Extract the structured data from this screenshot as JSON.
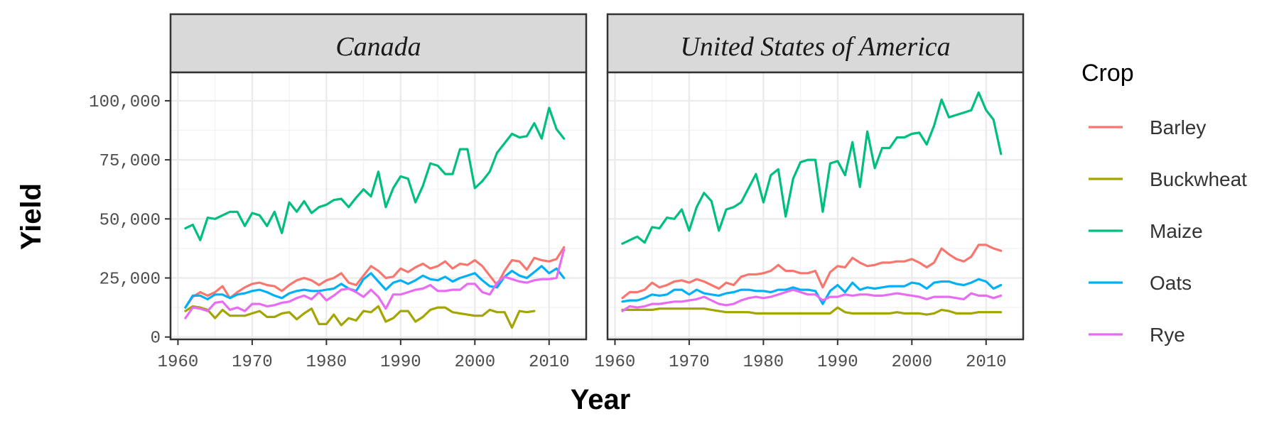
{
  "chart_data": {
    "type": "line",
    "xlabel": "Year",
    "ylabel": "Yield",
    "xlim": [
      1959,
      2015
    ],
    "ylim": [
      -1000,
      112000
    ],
    "xticks": [
      1960,
      1970,
      1980,
      1990,
      2000,
      2010
    ],
    "xtick_labels": [
      "1960",
      "1970",
      "1980",
      "1990",
      "2000",
      "2010"
    ],
    "yticks": [
      0,
      25000,
      50000,
      75000,
      100000
    ],
    "ytick_labels": [
      "0",
      "25,000",
      "50,000",
      "75,000",
      "100,000"
    ],
    "grid": true,
    "legend": {
      "title": "Crop",
      "position": "right",
      "items": [
        {
          "name": "Barley",
          "color": "#F8766D"
        },
        {
          "name": "Buckwheat",
          "color": "#A3A500"
        },
        {
          "name": "Maize",
          "color": "#00BF7D"
        },
        {
          "name": "Oats",
          "color": "#00B0F6"
        },
        {
          "name": "Rye",
          "color": "#E76BF3"
        }
      ]
    },
    "x": [
      1961,
      1962,
      1963,
      1964,
      1965,
      1966,
      1967,
      1968,
      1969,
      1970,
      1971,
      1972,
      1973,
      1974,
      1975,
      1976,
      1977,
      1978,
      1979,
      1980,
      1981,
      1982,
      1983,
      1984,
      1985,
      1986,
      1987,
      1988,
      1989,
      1990,
      1991,
      1992,
      1993,
      1994,
      1995,
      1996,
      1997,
      1998,
      1999,
      2000,
      2001,
      2002,
      2003,
      2004,
      2005,
      2006,
      2007,
      2008,
      2009,
      2010,
      2011,
      2012
    ],
    "panels": [
      {
        "title": "Canada",
        "series": [
          {
            "name": "Barley",
            "color": "#F8766D",
            "values": [
              12500,
              17000,
              19000,
              17500,
              19000,
              21500,
              16500,
              19000,
              21000,
              22500,
              23000,
              22000,
              21500,
              19500,
              22000,
              24000,
              25000,
              24000,
              22000,
              24000,
              25000,
              27000,
              23000,
              22000,
              26000,
              30000,
              28000,
              25000,
              25500,
              29000,
              27500,
              29500,
              31000,
              29000,
              30000,
              32000,
              29000,
              31000,
              30500,
              32500,
              30000,
              26000,
              22000,
              28000,
              32500,
              32000,
              28500,
              33500,
              32500,
              32000,
              33000,
              38000
            ]
          },
          {
            "name": "Buckwheat",
            "color": "#A3A500",
            "values": [
              11000,
              13000,
              12500,
              11500,
              8000,
              11500,
              9000,
              9000,
              9000,
              10000,
              11000,
              8500,
              8500,
              10000,
              10500,
              7500,
              10000,
              12000,
              5500,
              5500,
              9500,
              5000,
              8000,
              7000,
              11000,
              10500,
              13000,
              6500,
              8000,
              11000,
              11000,
              6500,
              8500,
              11500,
              12500,
              12500,
              10500,
              10000,
              9500,
              9000,
              9000,
              11500,
              10500,
              10500,
              4000,
              11000,
              10500,
              11000,
              null,
              null,
              null,
              null
            ]
          },
          {
            "name": "Maize",
            "color": "#00BF7D",
            "values": [
              46000,
              47500,
              41000,
              50500,
              50000,
              51500,
              53000,
              53000,
              47000,
              52500,
              51500,
              47000,
              53000,
              44000,
              57000,
              53000,
              57500,
              52500,
              55000,
              56000,
              58000,
              58500,
              55000,
              59000,
              62500,
              59500,
              70000,
              55000,
              63000,
              68000,
              67000,
              57000,
              64000,
              73500,
              72500,
              69000,
              69000,
              79500,
              79500,
              63000,
              66000,
              70000,
              78000,
              82000,
              86000,
              84500,
              85000,
              90500,
              84000,
              97000,
              88000,
              84000
            ]
          },
          {
            "name": "Oats",
            "color": "#00B0F6",
            "values": [
              12500,
              17500,
              17500,
              16000,
              18000,
              18000,
              16500,
              18000,
              18500,
              19500,
              20000,
              19000,
              17500,
              16500,
              18500,
              19500,
              20000,
              19500,
              19500,
              20000,
              20500,
              22500,
              20500,
              19500,
              24500,
              27000,
              23500,
              20000,
              23000,
              24000,
              22500,
              24000,
              26000,
              24500,
              24000,
              25500,
              23500,
              25000,
              26000,
              27000,
              24000,
              21500,
              21000,
              25500,
              28000,
              26000,
              25000,
              27500,
              30000,
              27000,
              29000,
              25000
            ]
          },
          {
            "name": "Rye",
            "color": "#E76BF3",
            "values": [
              8000,
              12500,
              12000,
              11000,
              14500,
              15000,
              11500,
              12500,
              11000,
              14000,
              14000,
              13000,
              13500,
              14500,
              15000,
              16500,
              17500,
              16000,
              19000,
              15500,
              17500,
              20000,
              20500,
              19000,
              17000,
              20000,
              17000,
              12000,
              18000,
              18000,
              19000,
              20000,
              20500,
              22000,
              19500,
              19500,
              20000,
              20000,
              22500,
              22500,
              19000,
              18000,
              23000,
              25500,
              24500,
              23500,
              23000,
              24000,
              24500,
              24500,
              25000,
              37000
            ]
          }
        ]
      },
      {
        "title": "United States of America",
        "series": [
          {
            "name": "Barley",
            "color": "#F8766D",
            "values": [
              16500,
              19000,
              19000,
              20000,
              23000,
              21000,
              22000,
              23500,
              24000,
              23000,
              24500,
              23500,
              22000,
              20500,
              23000,
              22000,
              25500,
              26500,
              26500,
              27000,
              28000,
              30500,
              28000,
              28000,
              27000,
              27000,
              28000,
              21000,
              27500,
              30000,
              29500,
              33500,
              31500,
              30000,
              30500,
              31500,
              31500,
              32000,
              32000,
              33000,
              31500,
              29500,
              31500,
              37500,
              35000,
              33000,
              32000,
              34000,
              39000,
              39000,
              37500,
              36500
            ]
          },
          {
            "name": "Buckwheat",
            "color": "#A3A500",
            "values": [
              11500,
              11500,
              11500,
              11500,
              11500,
              12000,
              12000,
              12000,
              12000,
              12000,
              12000,
              12000,
              11500,
              11000,
              10500,
              10500,
              10500,
              10500,
              10000,
              10000,
              10000,
              10000,
              10000,
              10000,
              10000,
              10000,
              10000,
              10000,
              10000,
              12500,
              10500,
              10000,
              10000,
              10000,
              10000,
              10000,
              10000,
              10500,
              10000,
              10000,
              10000,
              9500,
              10000,
              11500,
              11000,
              10000,
              10000,
              10000,
              10500,
              10500,
              10500,
              10500
            ]
          },
          {
            "name": "Maize",
            "color": "#00BF7D",
            "values": [
              39500,
              41000,
              42500,
              40000,
              46500,
              46000,
              50500,
              50000,
              54000,
              45000,
              55000,
              61000,
              57500,
              45000,
              54000,
              55000,
              57000,
              63000,
              69000,
              57000,
              68500,
              71000,
              51000,
              67000,
              74000,
              75000,
              75000,
              53000,
              73500,
              74500,
              68500,
              82500,
              63500,
              87000,
              71500,
              80000,
              80000,
              84500,
              84500,
              86000,
              86500,
              81500,
              89500,
              100500,
              93000,
              94000,
              95000,
              96000,
              103500,
              96000,
              92000,
              77500
            ]
          },
          {
            "name": "Oats",
            "color": "#00B0F6",
            "values": [
              15000,
              15500,
              15500,
              16500,
              18000,
              17500,
              18000,
              20000,
              20000,
              18000,
              20000,
              18500,
              18000,
              17500,
              18500,
              19000,
              20000,
              20000,
              19500,
              19500,
              19000,
              20000,
              20000,
              21000,
              20000,
              20000,
              19500,
              14000,
              19500,
              22000,
              19000,
              23000,
              20000,
              21000,
              20500,
              21000,
              21500,
              21500,
              21500,
              23000,
              22500,
              20500,
              23000,
              23500,
              23500,
              22500,
              22000,
              23000,
              24500,
              23500,
              20500,
              22000
            ]
          },
          {
            "name": "Rye",
            "color": "#E76BF3",
            "values": [
              11000,
              13000,
              12500,
              13000,
              14000,
              14000,
              14500,
              15000,
              15000,
              15500,
              16000,
              17000,
              15500,
              14000,
              13500,
              14000,
              15500,
              16500,
              17000,
              16500,
              17000,
              18000,
              19000,
              20000,
              19000,
              18000,
              18000,
              15500,
              17000,
              17000,
              18000,
              17500,
              18000,
              18000,
              17500,
              17500,
              18000,
              18500,
              18000,
              17500,
              17000,
              16000,
              17000,
              17000,
              17000,
              16500,
              16000,
              18500,
              17500,
              17500,
              16500,
              17500
            ]
          }
        ]
      }
    ]
  }
}
